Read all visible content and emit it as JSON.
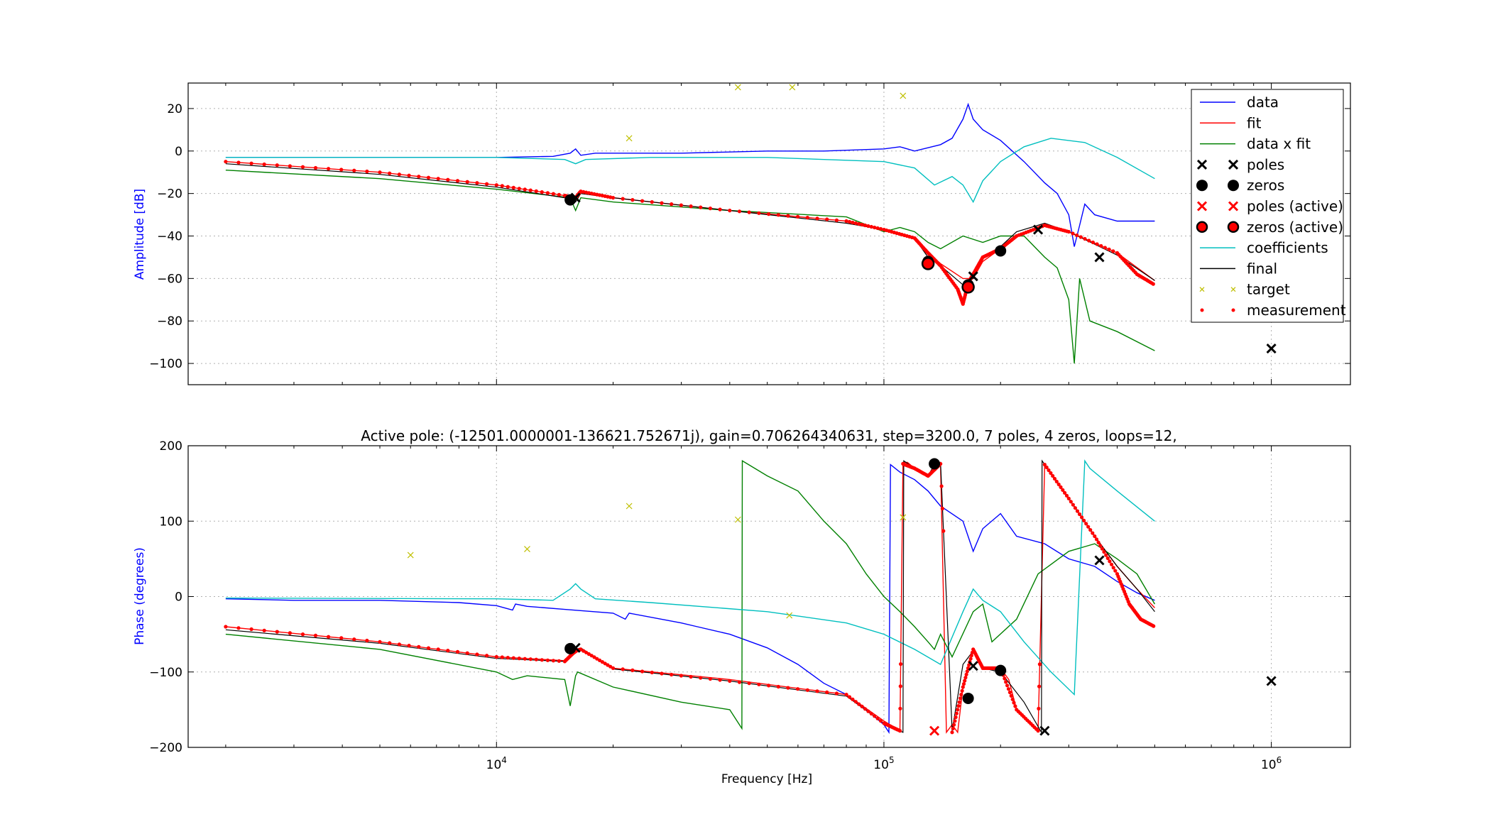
{
  "chart_data": [
    {
      "type": "line",
      "panel": "amplitude",
      "title": "",
      "xlabel": "",
      "ylabel": "Amplitude [dB]",
      "xscale": "log",
      "xlim": [
        1600,
        1600000
      ],
      "ylim": [
        -110,
        32
      ],
      "yticks": [
        20,
        0,
        -20,
        -40,
        -60,
        -80,
        -100
      ],
      "grid": true,
      "legend_placement": "top-right",
      "legend": [
        {
          "label": "data",
          "color": "#0000ff",
          "marker": "line"
        },
        {
          "label": "fit",
          "color": "#ff0000",
          "marker": "line"
        },
        {
          "label": "data x fit",
          "color": "#008000",
          "marker": "line"
        },
        {
          "label": "poles",
          "color": "#000000",
          "marker": "x"
        },
        {
          "label": "zeros",
          "color": "#000000",
          "marker": "o"
        },
        {
          "label": "poles (active)",
          "color": "#ff0000",
          "marker": "x"
        },
        {
          "label": "zeros (active)",
          "color": "#ff0000",
          "marker": "o-red"
        },
        {
          "label": "coefficients",
          "color": "#00bfbf",
          "marker": "line"
        },
        {
          "label": "final",
          "color": "#000000",
          "marker": "line"
        },
        {
          "label": "target",
          "color": "#bfbf00",
          "marker": "small-x"
        },
        {
          "label": "measurement",
          "color": "#ff0000",
          "marker": "dot"
        }
      ],
      "series": [
        {
          "name": "data",
          "color": "#0000ff",
          "x": [
            2000,
            5000,
            10000,
            14000,
            15500,
            16000,
            16500,
            18000,
            30000,
            50000,
            60000,
            70000,
            100000,
            110000,
            120000,
            140000,
            150000,
            160000,
            165000,
            170000,
            180000,
            200000,
            230000,
            260000,
            280000,
            300000,
            310000,
            320000,
            330000,
            350000,
            400000,
            500000
          ],
          "y": [
            -3,
            -3,
            -3,
            -2.5,
            -1,
            1,
            -2,
            -1,
            -1,
            0,
            0,
            0,
            1,
            2,
            0,
            3,
            6,
            15,
            22,
            15,
            10,
            5,
            -5,
            -15,
            -20,
            -30,
            -45,
            -35,
            -25,
            -30,
            -33,
            -33
          ]
        },
        {
          "name": "fit",
          "color": "#ff0000",
          "x": [
            2000,
            5000,
            10000,
            15000,
            16000,
            16500,
            20000,
            40000,
            80000,
            100000,
            120000,
            130000,
            140000,
            160000,
            170000,
            180000,
            200000,
            220000,
            260000,
            300000,
            400000,
            500000
          ],
          "y": [
            -5,
            -10,
            -16,
            -21,
            -23,
            -19,
            -22,
            -28,
            -33,
            -37,
            -41,
            -48,
            -53,
            -60,
            -60,
            -52,
            -46,
            -40,
            -35,
            -38,
            -48,
            -61
          ]
        },
        {
          "name": "data x fit",
          "color": "#008000",
          "x": [
            2000,
            5000,
            10000,
            15500,
            16000,
            16500,
            20000,
            40000,
            80000,
            100000,
            110000,
            120000,
            130000,
            140000,
            160000,
            180000,
            200000,
            230000,
            260000,
            280000,
            300000,
            310000,
            320000,
            340000,
            400000,
            500000
          ],
          "y": [
            -9,
            -13,
            -18,
            -22,
            -28,
            -22,
            -24,
            -28,
            -31,
            -38,
            -36,
            -38,
            -43,
            -46,
            -40,
            -43,
            -40,
            -40,
            -50,
            -55,
            -70,
            -100,
            -60,
            -80,
            -85,
            -94
          ]
        },
        {
          "name": "coefficients",
          "color": "#00bfbf",
          "x": [
            2000,
            10000,
            15000,
            16000,
            17000,
            25000,
            50000,
            100000,
            120000,
            135000,
            150000,
            160000,
            170000,
            180000,
            200000,
            230000,
            270000,
            330000,
            400000,
            500000
          ],
          "y": [
            -3,
            -3,
            -4,
            -6,
            -4,
            -3,
            -3,
            -5,
            -8,
            -16,
            -12,
            -16,
            -24,
            -14,
            -5,
            2,
            6,
            4,
            -3,
            -13
          ]
        },
        {
          "name": "final",
          "color": "#000000",
          "x": [
            2000,
            5000,
            10000,
            15000,
            16000,
            16500,
            20000,
            40000,
            80000,
            100000,
            120000,
            130000,
            140000,
            160000,
            170000,
            180000,
            200000,
            220000,
            260000,
            300000,
            400000,
            500000
          ],
          "y": [
            -6,
            -11,
            -17,
            -22,
            -24,
            -20,
            -22,
            -28,
            -34,
            -37,
            -41,
            -50,
            -54,
            -63,
            -60,
            -50,
            -45,
            -38,
            -34,
            -38,
            -49,
            -61
          ]
        }
      ],
      "measurement": {
        "name": "measurement",
        "color": "#ff0000",
        "x": [
          2000,
          5000,
          10000,
          15000,
          16000,
          16500,
          20000,
          40000,
          80000,
          100000,
          120000,
          130000,
          140000,
          155000,
          160000,
          165000,
          170000,
          180000,
          200000,
          220000,
          260000,
          300000,
          400000,
          450000,
          500000
        ],
        "y": [
          -5,
          -10,
          -16,
          -21,
          -22,
          -19,
          -22,
          -28,
          -33,
          -37,
          -41,
          -48,
          -54,
          -65,
          -72,
          -62,
          -58,
          -50,
          -46,
          -40,
          -35,
          -38,
          -48,
          -58,
          -63
        ]
      },
      "poles": {
        "x": [
          16000,
          170000,
          250000,
          360000,
          1000000
        ],
        "y": [
          -22,
          -59,
          -37,
          -50,
          -93
        ]
      },
      "zeros": {
        "x": [
          15500,
          130000,
          165000,
          200000
        ],
        "y": [
          -23,
          -52,
          -63,
          -47
        ]
      },
      "poles_active": {
        "x": [],
        "y": []
      },
      "zeros_active": {
        "x": [
          130000,
          165000
        ],
        "y": [
          -53,
          -64
        ]
      },
      "target": {
        "x": [
          22000,
          42000,
          58000,
          112000
        ],
        "y": [
          6,
          30,
          30,
          26
        ]
      }
    },
    {
      "type": "line",
      "panel": "phase",
      "title": "Active pole: (-12501.0000001-136621.752671j), gain=0.706264340631, step=3200.0, 7 poles, 4 zeros, loops=12,",
      "xlabel": "Frequency [Hz]",
      "ylabel": "Phase (degrees)",
      "xscale": "log",
      "xlim": [
        1600,
        1600000
      ],
      "ylim": [
        -200,
        200
      ],
      "xticks": [
        {
          "value": 10000,
          "base": "10",
          "exp": "4"
        },
        {
          "value": 100000,
          "base": "10",
          "exp": "5"
        },
        {
          "value": 1000000,
          "base": "10",
          "exp": "6"
        }
      ],
      "yticks": [
        200,
        100,
        0,
        -100,
        -200
      ],
      "grid": true,
      "series": [
        {
          "name": "data",
          "color": "#0000ff",
          "x": [
            2000,
            3000,
            5000,
            8000,
            10000,
            11000,
            11200,
            12000,
            15000,
            20000,
            21500,
            22000,
            30000,
            33000,
            40000,
            50000,
            60000,
            70000,
            80000,
            90000,
            100000,
            103000,
            104000,
            110000,
            120000,
            130000,
            140000,
            160000,
            170000,
            180000,
            200000,
            220000,
            260000,
            300000,
            350000,
            400000,
            450000,
            500000
          ],
          "y": [
            -3,
            -5,
            -5,
            -8,
            -12,
            -18,
            -10,
            -13,
            -17,
            -22,
            -30,
            -22,
            -35,
            -40,
            -50,
            -68,
            -90,
            -115,
            -130,
            -150,
            -170,
            -180,
            175,
            165,
            155,
            140,
            120,
            100,
            60,
            90,
            110,
            80,
            70,
            50,
            40,
            20,
            5,
            -5
          ]
        },
        {
          "name": "fit",
          "color": "#ff0000",
          "x": [
            2000,
            5000,
            10000,
            15000,
            16000,
            16500,
            20000,
            40000,
            80000,
            100000,
            110000,
            112000,
            115000,
            120000,
            130000,
            140000,
            145000,
            150000,
            155000,
            160000,
            170000,
            180000,
            200000,
            210000,
            220000,
            250000,
            260000,
            300000,
            350000,
            400000,
            450000,
            500000
          ],
          "y": [
            -40,
            -60,
            -80,
            -85,
            -75,
            -70,
            -95,
            -110,
            -130,
            -165,
            -178,
            178,
            178,
            170,
            160,
            175,
            -180,
            -170,
            -180,
            -120,
            -70,
            -95,
            -95,
            -110,
            -150,
            -178,
            175,
            130,
            80,
            40,
            10,
            -15
          ]
        },
        {
          "name": "data x fit",
          "color": "#008000",
          "x": [
            2000,
            5000,
            10000,
            11000,
            12000,
            15000,
            15500,
            16000,
            16200,
            20000,
            30000,
            40000,
            43000,
            43100,
            50000,
            60000,
            70000,
            80000,
            90000,
            100000,
            110000,
            120000,
            130000,
            135000,
            140000,
            150000,
            170000,
            180000,
            190000,
            220000,
            250000,
            300000,
            350000,
            400000,
            450000,
            500000
          ],
          "y": [
            -50,
            -70,
            -100,
            -110,
            -105,
            -110,
            -145,
            -105,
            -100,
            -120,
            -140,
            -150,
            -175,
            180,
            160,
            140,
            100,
            70,
            30,
            0,
            -20,
            -40,
            -60,
            -70,
            -50,
            -80,
            -20,
            -10,
            -60,
            -30,
            30,
            60,
            70,
            50,
            30,
            -10
          ]
        },
        {
          "name": "coefficients",
          "color": "#00bfbf",
          "x": [
            2000,
            10000,
            14000,
            15500,
            16000,
            16500,
            18000,
            25000,
            50000,
            80000,
            100000,
            120000,
            140000,
            160000,
            170000,
            180000,
            200000,
            230000,
            270000,
            310000,
            330000,
            340000,
            400000,
            500000
          ],
          "y": [
            -2,
            -3,
            -5,
            10,
            17,
            10,
            -3,
            -8,
            -20,
            -35,
            -50,
            -70,
            -90,
            -20,
            10,
            -5,
            -20,
            -60,
            -100,
            -130,
            180,
            170,
            140,
            100
          ]
        },
        {
          "name": "final",
          "color": "#000000",
          "x": [
            2000,
            5000,
            10000,
            15000,
            16000,
            16500,
            20000,
            40000,
            80000,
            100000,
            112000,
            112500,
            120000,
            130000,
            135000,
            140000,
            150000,
            160000,
            170000,
            180000,
            200000,
            230000,
            255000,
            256000,
            300000,
            350000,
            400000,
            450000,
            500000
          ],
          "y": [
            -44,
            -62,
            -82,
            -86,
            -72,
            -68,
            -96,
            -112,
            -132,
            -168,
            -180,
            180,
            170,
            160,
            175,
            178,
            -178,
            -90,
            -72,
            -95,
            -100,
            -140,
            -180,
            180,
            130,
            80,
            40,
            10,
            -20
          ]
        }
      ],
      "measurement": {
        "name": "measurement",
        "color": "#ff0000",
        "x": [
          2000,
          5000,
          10000,
          15000,
          16000,
          16500,
          20000,
          40000,
          80000,
          100000,
          110000,
          112000,
          120000,
          130000,
          140000,
          150000,
          160000,
          170000,
          180000,
          200000,
          220000,
          250000,
          260000,
          300000,
          350000,
          400000,
          430000,
          460000,
          500000
        ],
        "y": [
          -40,
          -60,
          -80,
          -86,
          -72,
          -70,
          -95,
          -112,
          -130,
          -168,
          -178,
          176,
          170,
          160,
          176,
          -180,
          -120,
          -70,
          -95,
          -95,
          -150,
          -178,
          175,
          130,
          80,
          30,
          -10,
          -30,
          -40
        ]
      },
      "poles": {
        "x": [
          16000,
          170000,
          260000,
          360000,
          1000000
        ],
        "y": [
          -68,
          -92,
          -178,
          48,
          -112
        ]
      },
      "zeros": {
        "x": [
          15500,
          135000,
          165000,
          200000
        ],
        "y": [
          -69,
          176,
          -135,
          -98
        ]
      },
      "poles_active": {
        "x": [
          135000
        ],
        "y": [
          -178
        ]
      },
      "zeros_active": {
        "x": [],
        "y": []
      },
      "target": {
        "x": [
          6000,
          12000,
          22000,
          42000,
          57000,
          112000
        ],
        "y": [
          55,
          63,
          120,
          102,
          -25,
          105
        ]
      }
    }
  ]
}
